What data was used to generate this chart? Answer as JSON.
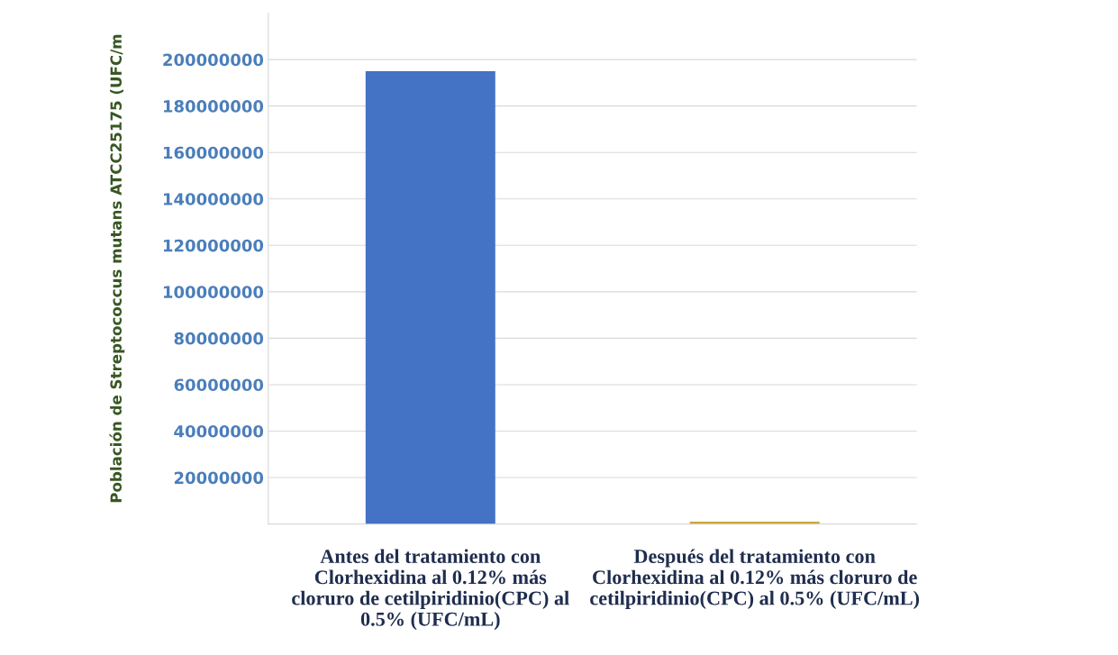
{
  "chart_data": {
    "type": "bar",
    "ylabel": "Población de Streptococcus mutans ATCC25175 (UFC/m",
    "categories": [
      "Antes del tratamiento con\nClorhexidina al 0.12% más\ncloruro de cetilpiridinio(CPC) al\n0.5% (UFC/mL)",
      "Después del tratamiento con\nClorhexidina al 0.12% más cloruro de\ncetilpiridinio(CPC) al 0.5% (UFC/mL)"
    ],
    "values": [
      195000000,
      1000000
    ],
    "colors": [
      "#4472c4",
      "#c9a640"
    ],
    "ylim": [
      0,
      220000000
    ],
    "yticks": [
      20000000,
      40000000,
      60000000,
      80000000,
      100000000,
      120000000,
      140000000,
      160000000,
      180000000,
      200000000
    ],
    "grid": "y"
  }
}
